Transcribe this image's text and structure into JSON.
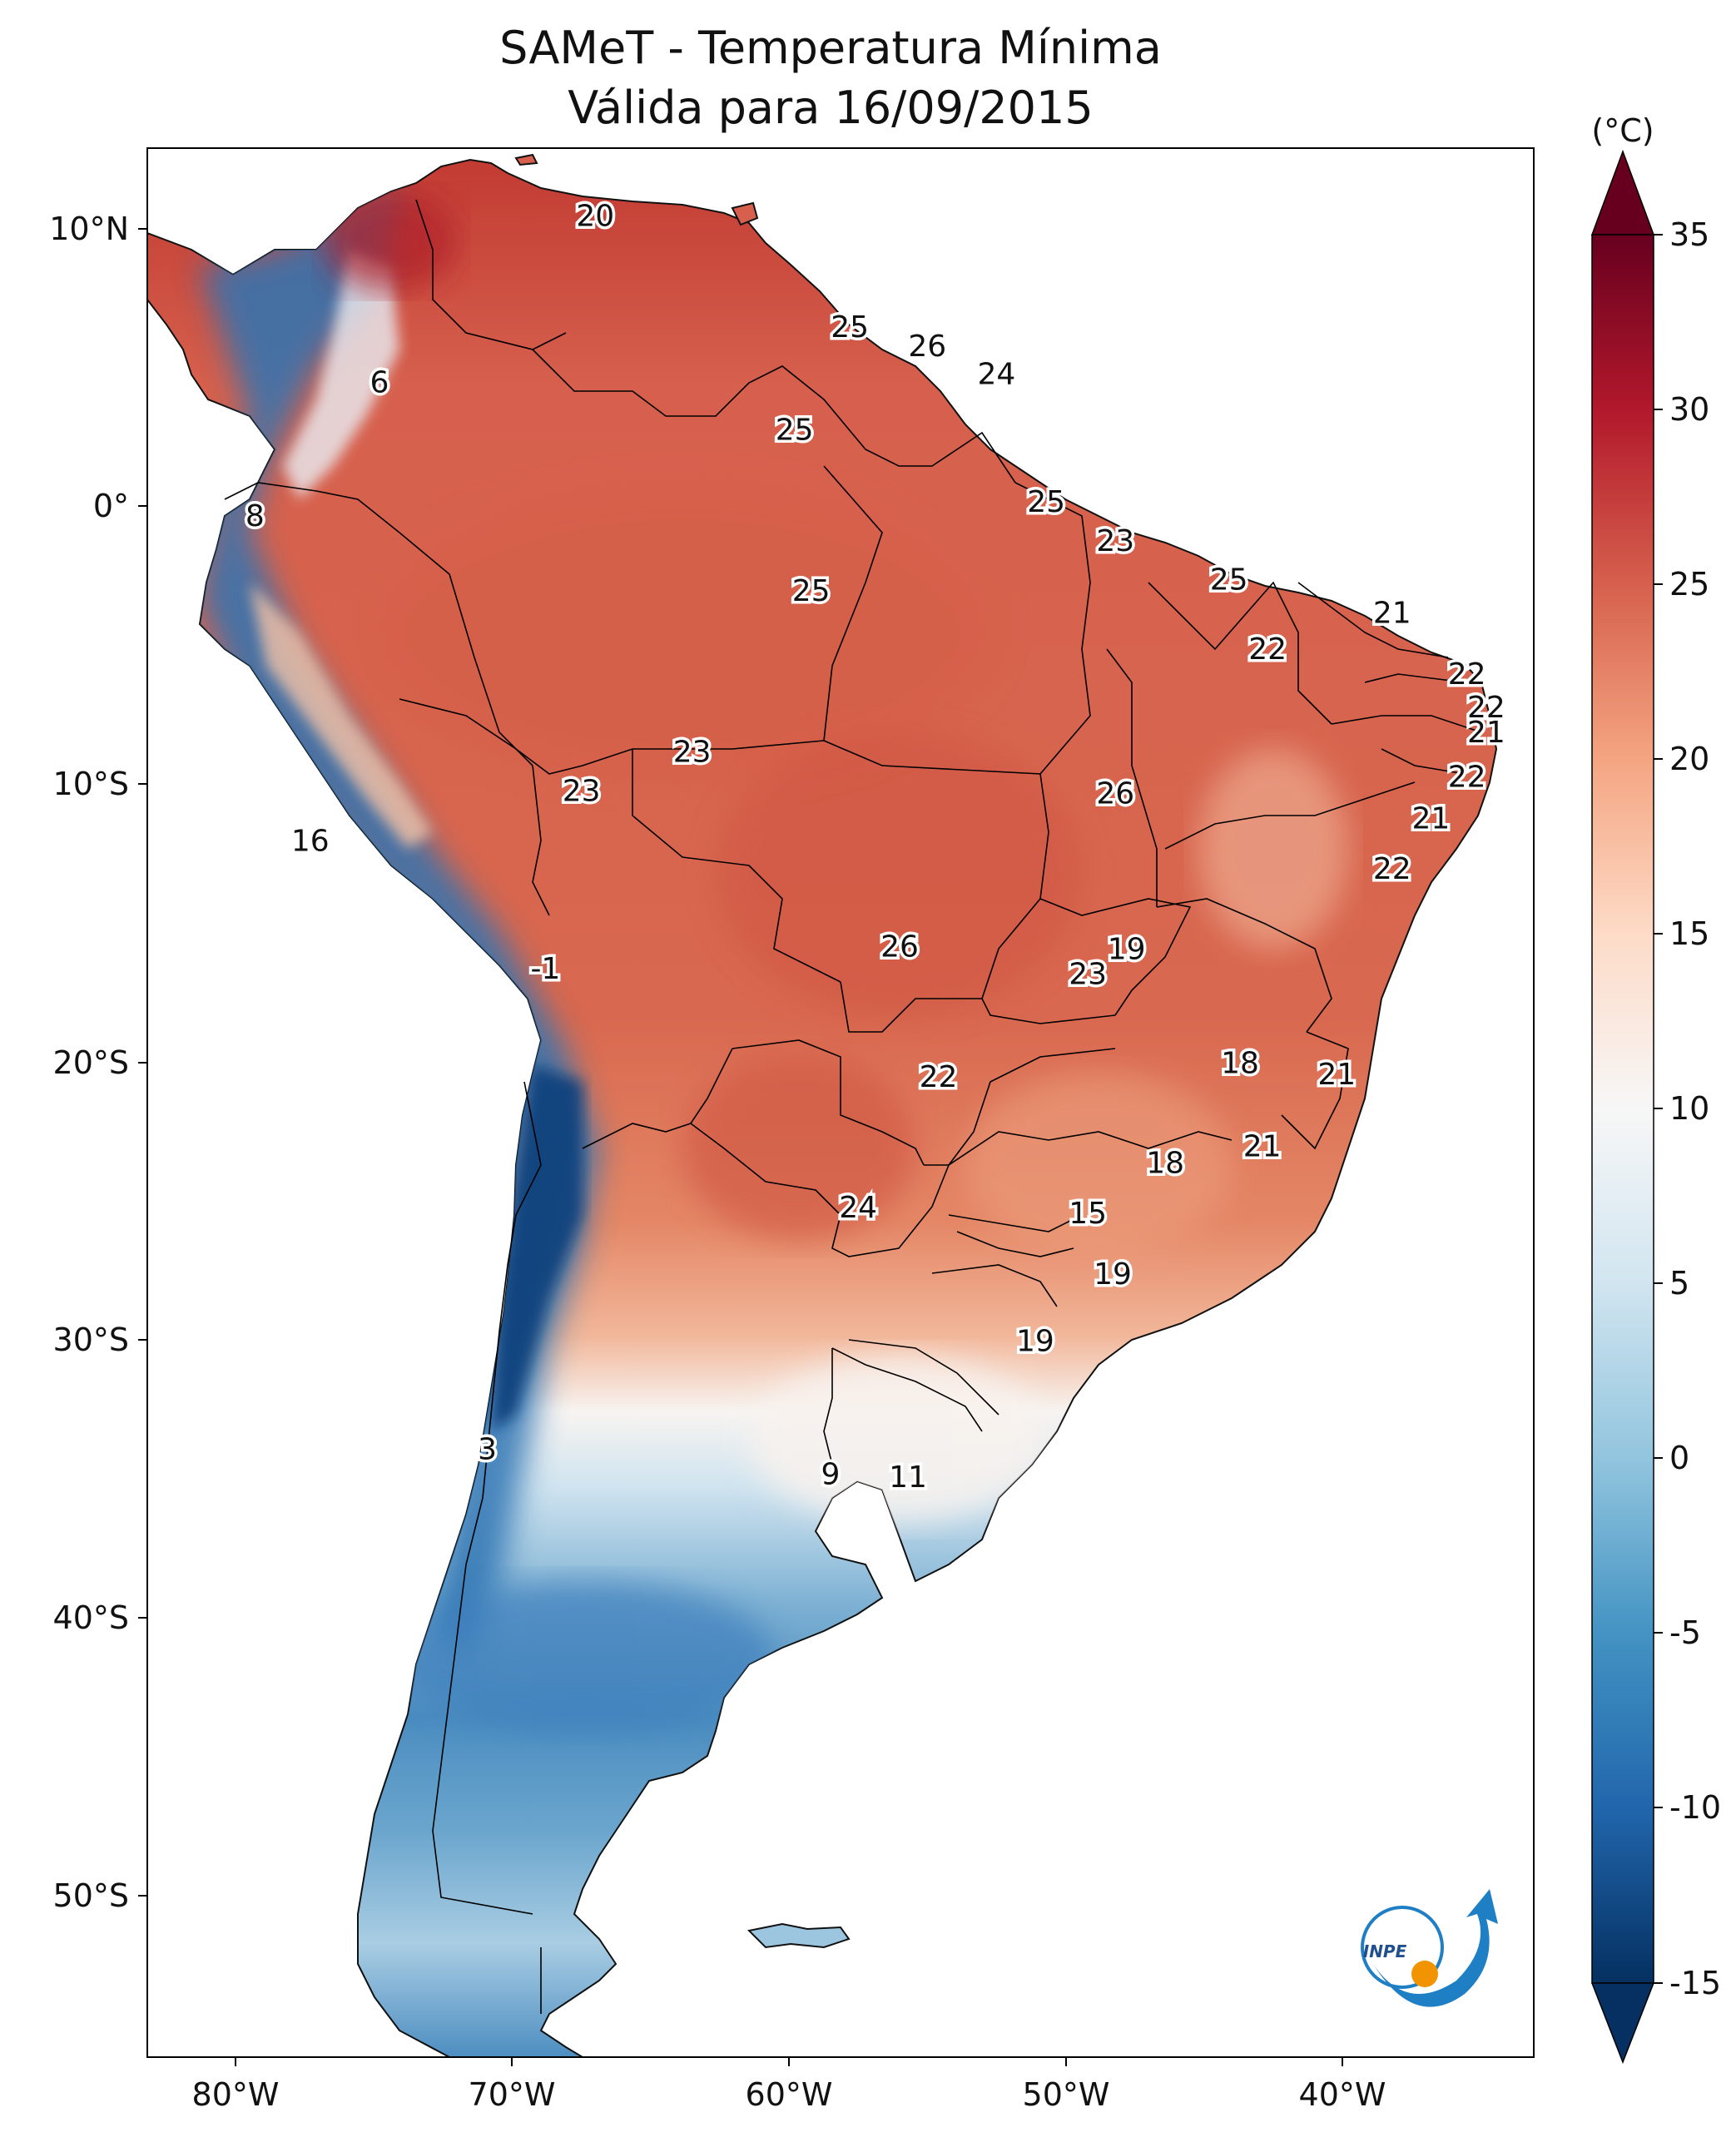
{
  "title": {
    "line1": "SAMeT - Temperatura Mínima",
    "line2": "Válida para 16/09/2015"
  },
  "axes": {
    "lon_ticks": [
      "80°W",
      "70°W",
      "60°W",
      "50°W",
      "40°W"
    ],
    "lat_ticks": [
      "10°N",
      "0°",
      "10°S",
      "20°S",
      "30°S",
      "40°S",
      "50°S"
    ]
  },
  "colorbar": {
    "unit": "(°C)",
    "range": [
      -15,
      35
    ],
    "ticks": [
      "35",
      "30",
      "25",
      "20",
      "15",
      "10",
      "5",
      "0",
      "-5",
      "-10",
      "-15"
    ],
    "colors": [
      "#053061",
      "#2166ac",
      "#4393c3",
      "#92c5de",
      "#d1e5f0",
      "#f7f7f7",
      "#fddbc7",
      "#f4a582",
      "#d6604d",
      "#b2182b",
      "#67001f"
    ]
  },
  "map_labels": [
    {
      "text": "20",
      "lon": -67,
      "lat": 10.5
    },
    {
      "text": "25",
      "lon": -57.8,
      "lat": 6.5
    },
    {
      "text": "26",
      "lon": -55,
      "lat": 5.8
    },
    {
      "text": "24",
      "lon": -52.5,
      "lat": 4.8
    },
    {
      "text": "6",
      "lon": -74.8,
      "lat": 4.5
    },
    {
      "text": "25",
      "lon": -59.8,
      "lat": 2.8
    },
    {
      "text": "8",
      "lon": -79.3,
      "lat": -0.3
    },
    {
      "text": "25",
      "lon": -50.7,
      "lat": 0.2
    },
    {
      "text": "23",
      "lon": -48.2,
      "lat": -1.2
    },
    {
      "text": "25",
      "lon": -59.2,
      "lat": -3
    },
    {
      "text": "25",
      "lon": -44.1,
      "lat": -2.6
    },
    {
      "text": "21",
      "lon": -38.2,
      "lat": -3.8
    },
    {
      "text": "22",
      "lon": -42.7,
      "lat": -5.1
    },
    {
      "text": "22",
      "lon": -35.5,
      "lat": -6
    },
    {
      "text": "22",
      "lon": -34.8,
      "lat": -7.2
    },
    {
      "text": "21",
      "lon": -34.8,
      "lat": -8.1
    },
    {
      "text": "23",
      "lon": -63.5,
      "lat": -8.8
    },
    {
      "text": "23",
      "lon": -67.5,
      "lat": -10.2
    },
    {
      "text": "22",
      "lon": -35.5,
      "lat": -9.7
    },
    {
      "text": "26",
      "lon": -48.2,
      "lat": -10.3
    },
    {
      "text": "21",
      "lon": -36.8,
      "lat": -11.2
    },
    {
      "text": "16",
      "lon": -77.3,
      "lat": -12
    },
    {
      "text": "22",
      "lon": -38.2,
      "lat": -13
    },
    {
      "text": "26",
      "lon": -56,
      "lat": -15.8
    },
    {
      "text": "19",
      "lon": -47.8,
      "lat": -15.9
    },
    {
      "text": "-1",
      "lon": -68.8,
      "lat": -16.6
    },
    {
      "text": "23",
      "lon": -49.2,
      "lat": -16.8
    },
    {
      "text": "18",
      "lon": -43.7,
      "lat": -20
    },
    {
      "text": "22",
      "lon": -54.6,
      "lat": -20.5
    },
    {
      "text": "21",
      "lon": -40.2,
      "lat": -20.4
    },
    {
      "text": "21",
      "lon": -42.9,
      "lat": -23
    },
    {
      "text": "18",
      "lon": -46.4,
      "lat": -23.6
    },
    {
      "text": "24",
      "lon": -57.5,
      "lat": -25.2
    },
    {
      "text": "15",
      "lon": -49.2,
      "lat": -25.4
    },
    {
      "text": "19",
      "lon": -48.3,
      "lat": -27.6
    },
    {
      "text": "19",
      "lon": -51.1,
      "lat": -30
    },
    {
      "text": "3",
      "lon": -70.9,
      "lat": -33.9
    },
    {
      "text": "9",
      "lon": -58.5,
      "lat": -34.8
    },
    {
      "text": "11",
      "lon": -55.7,
      "lat": -34.9
    }
  ],
  "logo": {
    "text": "INPE",
    "colors": [
      "#1f7fc4",
      "#f29400"
    ]
  }
}
